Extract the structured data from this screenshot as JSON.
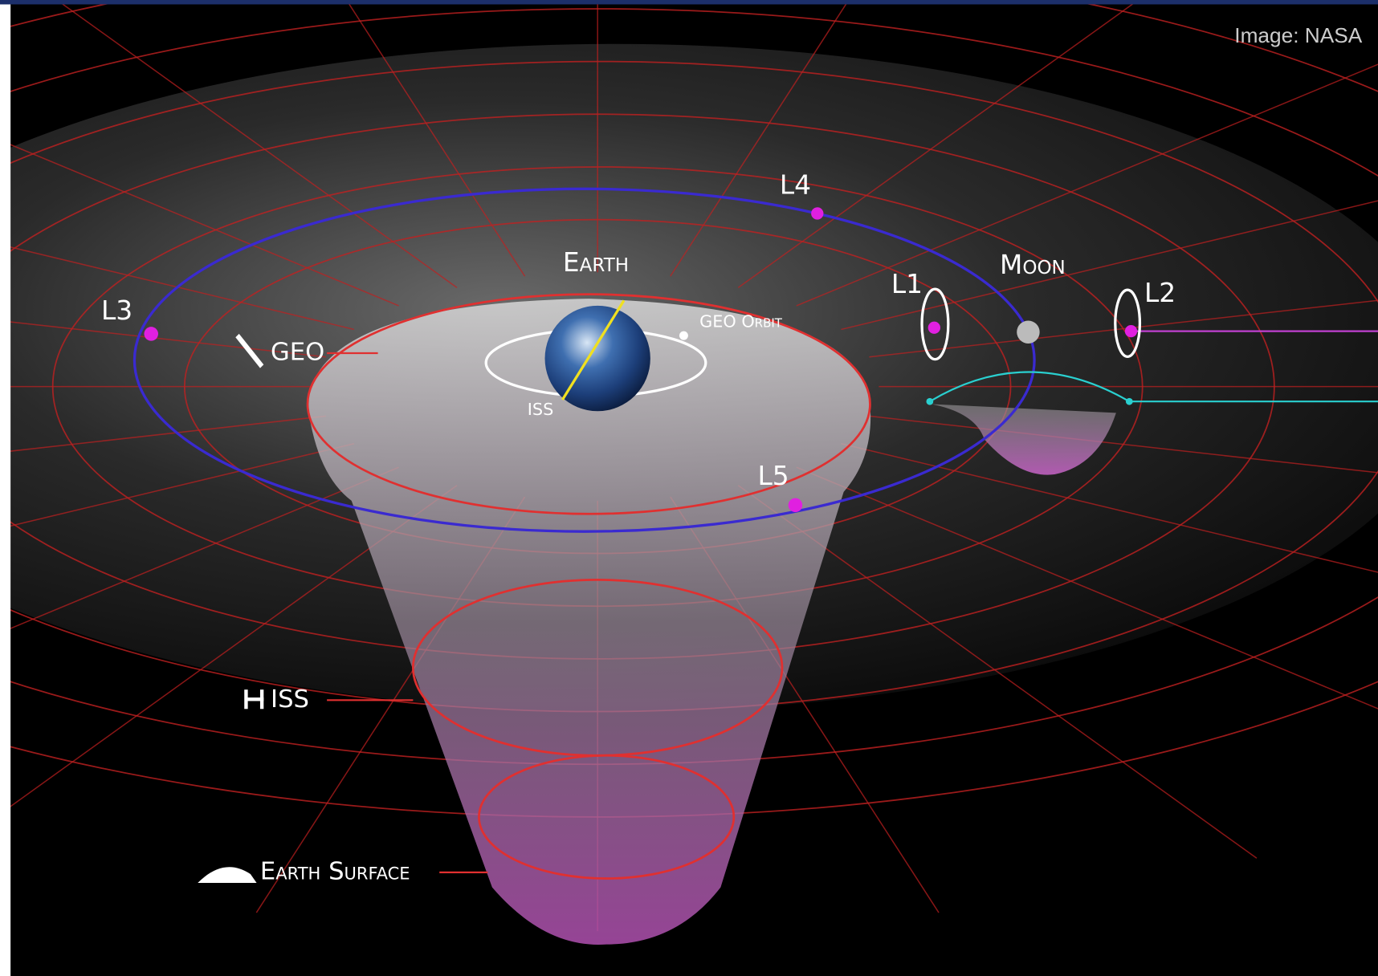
{
  "credit": "Image: NASA",
  "labels": {
    "l4": "L4",
    "earth": "Earth",
    "moon": "Moon",
    "l1": "L1",
    "l2": "L2",
    "l3": "L3",
    "geo": "GEO",
    "geo_orbit": "GEO Orbit",
    "iss_small": "ISS",
    "l5": "L5",
    "iss": "ISS",
    "earth_surface": "Earth Surface"
  }
}
